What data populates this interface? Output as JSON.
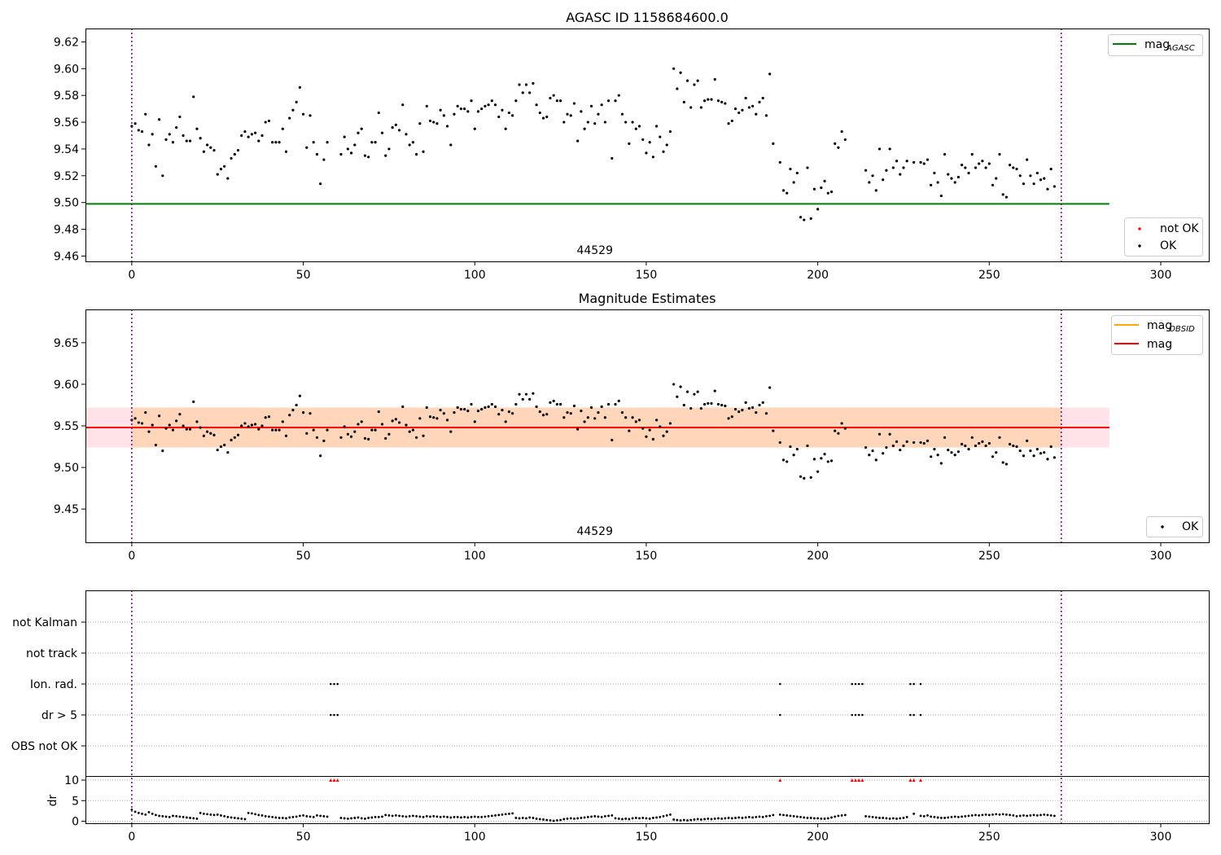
{
  "chart_data": [
    {
      "type": "scatter",
      "title": "AGASC ID 1158684600.0",
      "xlim": [
        -13.5,
        314
      ],
      "ylim": [
        9.456,
        9.63
      ],
      "xticks": [
        0,
        50,
        100,
        150,
        200,
        250,
        300
      ],
      "yticks": [
        9.46,
        9.48,
        9.5,
        9.52,
        9.54,
        9.56,
        9.58,
        9.6,
        9.62
      ],
      "ytick_labels": [
        "9.46",
        "9.48",
        "9.50",
        "9.52",
        "9.54",
        "9.56",
        "9.58",
        "9.60",
        "9.62"
      ],
      "obsid_label": "44529",
      "obsid_label_x": 135,
      "obsid_bounds": [
        0,
        271
      ],
      "line": {
        "name": "mag",
        "name_sub": "AGASC",
        "y": 9.499,
        "x": [
          -13.5,
          285
        ],
        "color": "#008000"
      },
      "legend_lines": [
        {
          "name": "mag",
          "sub": "AGASC",
          "color": "#008000"
        }
      ],
      "legend_markers": [
        {
          "name": "not OK",
          "color": "#ff0000"
        },
        {
          "name": "OK",
          "color": "#000000"
        }
      ]
    },
    {
      "type": "scatter",
      "title": "Magnitude Estimates",
      "xlim": [
        -13.5,
        314
      ],
      "ylim": [
        9.41,
        9.69
      ],
      "xticks": [
        0,
        50,
        100,
        150,
        200,
        250,
        300
      ],
      "yticks": [
        9.45,
        9.5,
        9.55,
        9.6,
        9.65
      ],
      "ytick_labels": [
        "9.45",
        "9.50",
        "9.55",
        "9.60",
        "9.65"
      ],
      "obsid_label": "44529",
      "obsid_label_x": 135,
      "obsid_bounds": [
        0,
        271
      ],
      "mag_obsid": {
        "name": "mag",
        "sub": "OBSID",
        "y": 9.548,
        "band": [
          9.524,
          9.572
        ],
        "x": [
          0,
          271
        ],
        "color": "#ffa500"
      },
      "mag": {
        "name": "mag",
        "y": 9.548,
        "band": [
          9.524,
          9.572
        ],
        "x": [
          -13.5,
          285
        ],
        "color": "#ff0000"
      },
      "legend_lines": [
        {
          "name": "mag",
          "sub": "OBSID",
          "color": "#ffa500"
        },
        {
          "name": "mag",
          "sub": "",
          "color": "#ff0000"
        }
      ],
      "legend_markers": [
        {
          "name": "OK",
          "color": "#000000"
        }
      ]
    },
    {
      "type": "scatter",
      "title": "",
      "xlim": [
        -13.5,
        314
      ],
      "xticks": [
        0,
        50,
        100,
        150,
        200,
        250,
        300
      ],
      "flag_rows": [
        "not Kalman",
        "not track",
        "Ion. rad.",
        "dr > 5",
        "OBS not OK"
      ],
      "flag_points": {
        "Ion. rad.": [
          58,
          59,
          60,
          189,
          210,
          211,
          212,
          213,
          227,
          228,
          230
        ],
        "dr > 5": [
          58,
          59,
          60,
          189,
          210,
          211,
          212,
          213,
          227,
          228,
          230
        ]
      },
      "dr": {
        "ylabel": "dr",
        "ylim": [
          -0.5,
          10.8
        ],
        "yticks": [
          0,
          5,
          10
        ],
        "ytick_labels": [
          "0",
          "5",
          "10"
        ],
        "clipped_value": 10,
        "clipped_x": [
          58,
          59,
          60,
          189,
          210,
          211,
          212,
          213,
          227,
          228,
          230
        ]
      },
      "obsid_bounds": [
        0,
        271
      ]
    }
  ],
  "series_mag": [
    9.557,
    9.559,
    9.554,
    9.553,
    9.566,
    9.543,
    9.551,
    9.527,
    9.562,
    9.52,
    9.547,
    9.551,
    9.545,
    9.556,
    9.564,
    9.55,
    9.546,
    9.546,
    9.579,
    9.555,
    9.548,
    9.538,
    9.543,
    9.541,
    9.539,
    9.521,
    9.525,
    9.527,
    9.518,
    9.533,
    9.536,
    9.539,
    9.55,
    9.553,
    9.549,
    9.551,
    9.552,
    9.546,
    9.55,
    9.56,
    9.561,
    9.545,
    9.545,
    9.545,
    9.555,
    9.538,
    9.563,
    9.569,
    9.575,
    9.586,
    9.566,
    9.541,
    9.565,
    9.545,
    9.536,
    9.514,
    9.532,
    9.545,
    null,
    null,
    null,
    9.536,
    9.549,
    9.54,
    9.537,
    9.543,
    9.552,
    9.555,
    9.535,
    9.534,
    9.545,
    9.545,
    9.567,
    9.552,
    9.535,
    9.54,
    9.556,
    9.558,
    9.554,
    9.573,
    9.551,
    9.543,
    9.545,
    9.536,
    9.559,
    9.538,
    9.572,
    9.561,
    9.56,
    9.559,
    9.569,
    9.565,
    9.557,
    9.543,
    9.566,
    9.572,
    9.57,
    9.57,
    9.568,
    9.576,
    9.555,
    9.568,
    9.57,
    9.572,
    9.573,
    9.576,
    9.573,
    9.564,
    9.569,
    9.555,
    9.567,
    9.565,
    9.576,
    9.588,
    9.582,
    9.588,
    9.582,
    9.589,
    9.573,
    9.567,
    9.563,
    9.564,
    9.578,
    9.58,
    9.576,
    9.576,
    9.56,
    9.566,
    9.565,
    9.574,
    9.546,
    9.568,
    9.555,
    9.56,
    9.572,
    9.559,
    9.566,
    9.573,
    9.56,
    9.576,
    9.533,
    9.576,
    9.58,
    9.566,
    9.56,
    9.544,
    9.56,
    9.555,
    9.557,
    9.547,
    9.537,
    9.545,
    9.534,
    9.557,
    9.549,
    9.538,
    9.543,
    9.553,
    9.6,
    9.585,
    9.597,
    9.575,
    9.591,
    9.571,
    9.588,
    9.591,
    9.571,
    9.576,
    9.577,
    9.577,
    9.592,
    9.576,
    9.575,
    9.574,
    9.559,
    9.561,
    9.57,
    9.567,
    9.569,
    9.578,
    9.571,
    9.572,
    9.566,
    9.575,
    9.578,
    9.565,
    9.596,
    9.544,
    null,
    9.53,
    9.509,
    9.507,
    9.525,
    9.515,
    9.522,
    9.489,
    9.487,
    9.526,
    9.488,
    9.51,
    9.495,
    9.511,
    9.516,
    9.507,
    9.508,
    9.544,
    9.541,
    9.553,
    9.547,
    null,
    null,
    null,
    null,
    null,
    9.524,
    9.515,
    9.52,
    9.509,
    9.54,
    9.517,
    9.524,
    9.54,
    9.526,
    9.531,
    9.521,
    9.526,
    9.531,
    null,
    9.53,
    null,
    9.53,
    9.529,
    9.532,
    9.513,
    9.522,
    9.515,
    9.505,
    9.536,
    9.521,
    9.518,
    9.515,
    9.519,
    9.528,
    9.526,
    9.522,
    9.536,
    9.526,
    9.529,
    9.531,
    9.526,
    9.529,
    9.513,
    9.518,
    9.536,
    9.506,
    9.504,
    9.528,
    9.526,
    9.525,
    9.52,
    9.514,
    9.532,
    9.52,
    9.514,
    9.522,
    9.517,
    9.518,
    9.51,
    9.525,
    9.512
  ],
  "series_dr": [
    2.8,
    2.3,
    2.0,
    1.8,
    1.6,
    2.2,
    1.8,
    1.5,
    1.3,
    1.2,
    1.1,
    1.0,
    1.3,
    1.2,
    1.1,
    1.0,
    0.9,
    0.8,
    0.7,
    0.6,
    2.0,
    1.8,
    1.7,
    1.6,
    1.5,
    1.6,
    1.4,
    1.2,
    1.0,
    0.9,
    0.8,
    0.7,
    0.6,
    0.5,
    2.0,
    1.9,
    1.7,
    1.5,
    1.4,
    1.2,
    1.1,
    1.0,
    0.9,
    0.8,
    0.8,
    0.7,
    0.9,
    1.0,
    1.1,
    1.3,
    1.4,
    1.2,
    1.1,
    1.0,
    1.4,
    1.3,
    1.2,
    1.1,
    null,
    null,
    null,
    0.8,
    0.7,
    0.6,
    0.7,
    0.8,
    0.9,
    0.7,
    0.6,
    0.8,
    0.9,
    1.0,
    1.0,
    1.1,
    1.5,
    1.4,
    1.3,
    1.4,
    1.3,
    1.2,
    1.1,
    1.2,
    1.3,
    1.2,
    1.1,
    1.0,
    1.2,
    1.1,
    1.2,
    1.1,
    1.0,
    1.1,
    1.0,
    0.9,
    1.0,
    1.0,
    0.9,
    1.0,
    0.9,
    1.0,
    1.1,
    1.0,
    1.0,
    1.1,
    1.2,
    1.3,
    1.4,
    1.5,
    1.6,
    1.7,
    1.8,
    1.9,
    0.8,
    0.7,
    0.8,
    0.7,
    0.9,
    0.8,
    0.6,
    0.5,
    0.4,
    0.3,
    0.2,
    0.1,
    0.2,
    0.3,
    0.5,
    0.6,
    0.7,
    0.6,
    0.7,
    0.8,
    0.9,
    1.0,
    1.1,
    1.2,
    1.1,
    1.0,
    1.2,
    1.3,
    1.4,
    0.7,
    0.6,
    0.5,
    0.6,
    0.5,
    0.7,
    0.8,
    0.7,
    0.8,
    0.7,
    0.6,
    0.8,
    0.9,
    1.0,
    1.2,
    1.4,
    1.6,
    0.4,
    0.3,
    0.2,
    0.3,
    0.2,
    0.3,
    0.4,
    0.5,
    0.4,
    0.5,
    0.6,
    0.5,
    0.6,
    0.7,
    0.6,
    0.7,
    0.8,
    0.7,
    0.8,
    0.9,
    0.8,
    0.9,
    1.0,
    0.9,
    1.0,
    1.1,
    1.0,
    1.2,
    1.3,
    1.5,
    null,
    1.6,
    1.5,
    1.4,
    1.3,
    1.2,
    1.1,
    1.0,
    0.9,
    0.8,
    0.8,
    0.7,
    0.7,
    0.6,
    0.6,
    0.7,
    0.9,
    1.1,
    1.3,
    1.4,
    1.5,
    null,
    null,
    null,
    null,
    null,
    1.2,
    1.1,
    1.0,
    0.9,
    0.8,
    0.8,
    0.7,
    0.6,
    0.7,
    0.6,
    0.7,
    0.8,
    1.0,
    null,
    1.8,
    null,
    1.3,
    1.2,
    1.4,
    1.1,
    1.0,
    0.9,
    0.8,
    0.8,
    0.9,
    1.0,
    1.1,
    1.0,
    1.1,
    1.2,
    1.3,
    1.4,
    1.5,
    1.4,
    1.5,
    1.6,
    1.5,
    1.6,
    1.7,
    1.6,
    1.7,
    1.6,
    1.5,
    1.4,
    1.2,
    1.3,
    1.4,
    1.3,
    1.4,
    1.5,
    1.4,
    1.5,
    1.6,
    1.5,
    1.4,
    1.3
  ]
}
